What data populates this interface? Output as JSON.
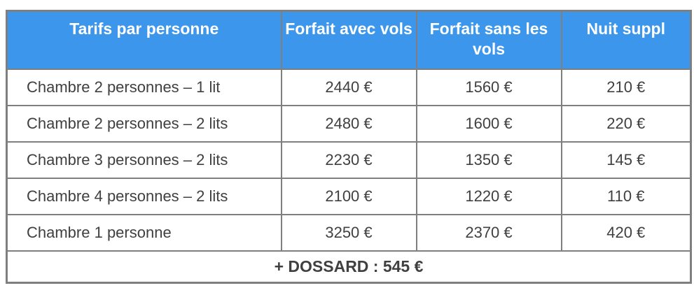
{
  "table": {
    "columns": [
      {
        "label": "Tarifs par personne"
      },
      {
        "label": "Forfait avec vols"
      },
      {
        "label": "Forfait sans les vols"
      },
      {
        "label": "Nuit suppl"
      }
    ],
    "rows": [
      {
        "label": "Chambre 2 personnes – 1 lit",
        "avec_vols": "2440 €",
        "sans_vols": "1560 €",
        "nuit_suppl": "210 €"
      },
      {
        "label": "Chambre 2 personnes – 2 lits",
        "avec_vols": "2480 €",
        "sans_vols": "1600 €",
        "nuit_suppl": "220 €"
      },
      {
        "label": "Chambre 3 personnes – 2 lits",
        "avec_vols": "2230 €",
        "sans_vols": "1350 €",
        "nuit_suppl": "145 €"
      },
      {
        "label": "Chambre 4 personnes – 2 lits",
        "avec_vols": "2100 €",
        "sans_vols": "1220 €",
        "nuit_suppl": "110 €"
      },
      {
        "label": "Chambre 1 personne",
        "avec_vols": "3250 €",
        "sans_vols": "2370 €",
        "nuit_suppl": "420 €"
      }
    ],
    "footer": "+ DOSSARD : 545 €"
  },
  "colors": {
    "header_bg": "#3c96eb",
    "header_text": "#ffffff",
    "body_text": "#404040",
    "border": "#7f7f7f"
  }
}
